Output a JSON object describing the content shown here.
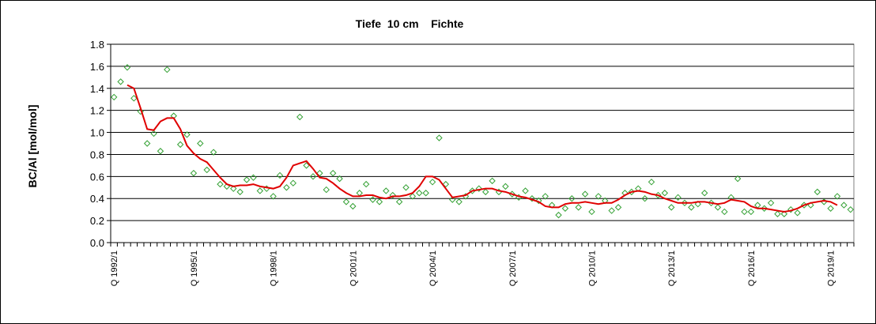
{
  "chart_data": {
    "type": "line",
    "title": "Tiefe  10 cm    Fichte",
    "y_label": "BC/Al [mol/mol]",
    "categories": [
      "Q 1992/1",
      null,
      null,
      null,
      null,
      null,
      null,
      null,
      null,
      null,
      null,
      null,
      "Q 1995/1",
      null,
      null,
      null,
      null,
      null,
      null,
      null,
      null,
      null,
      null,
      null,
      "Q 1998/1",
      null,
      null,
      null,
      null,
      null,
      null,
      null,
      null,
      null,
      null,
      null,
      "Q 2001/1",
      null,
      null,
      null,
      null,
      null,
      null,
      null,
      null,
      null,
      null,
      null,
      "Q 2004/1",
      null,
      null,
      null,
      null,
      null,
      null,
      null,
      null,
      null,
      null,
      null,
      "Q 2007/1",
      null,
      null,
      null,
      null,
      null,
      null,
      null,
      null,
      null,
      null,
      null,
      "Q 2010/1",
      null,
      null,
      null,
      null,
      null,
      null,
      null,
      null,
      null,
      null,
      null,
      "Q 2013/1",
      null,
      null,
      null,
      null,
      null,
      null,
      null,
      null,
      null,
      null,
      null,
      "Q 2016/1",
      null,
      null,
      null,
      null,
      null,
      null,
      null,
      null,
      null,
      null,
      null,
      "Q 2019/1",
      null,
      null,
      null
    ],
    "series": [
      {
        "style": "markers",
        "color": "#33a033",
        "values": [
          1.32,
          1.46,
          1.59,
          1.31,
          1.19,
          0.9,
          0.99,
          0.83,
          1.57,
          1.15,
          0.89,
          0.98,
          0.63,
          0.9,
          0.66,
          0.82,
          0.53,
          0.51,
          0.49,
          0.46,
          0.57,
          0.59,
          0.47,
          0.49,
          0.42,
          0.61,
          0.5,
          0.54,
          1.14,
          0.7,
          0.6,
          0.63,
          0.48,
          0.63,
          0.58,
          0.37,
          0.33,
          0.45,
          0.53,
          0.39,
          0.37,
          0.47,
          0.43,
          0.37,
          0.5,
          0.42,
          0.45,
          0.45,
          0.55,
          0.95,
          0.53,
          0.39,
          0.37,
          0.42,
          0.47,
          0.49,
          0.46,
          0.56,
          0.46,
          0.51,
          0.44,
          0.41,
          0.47,
          0.4,
          0.38,
          0.42,
          0.34,
          0.25,
          0.31,
          0.4,
          0.32,
          0.44,
          0.28,
          0.42,
          0.38,
          0.29,
          0.32,
          0.45,
          0.46,
          0.49,
          0.4,
          0.55,
          0.43,
          0.45,
          0.32,
          0.41,
          0.36,
          0.32,
          0.35,
          0.45,
          0.36,
          0.32,
          0.28,
          0.41,
          0.58,
          0.28,
          0.28,
          0.34,
          0.31,
          0.36,
          0.26,
          0.26,
          0.3,
          0.27,
          0.34,
          0.34,
          0.46,
          0.37,
          0.31,
          0.42,
          0.34,
          0.3
        ]
      },
      {
        "style": "line",
        "color": "#e00000",
        "values": [
          null,
          null,
          1.43,
          1.4,
          1.22,
          1.03,
          1.02,
          1.1,
          1.13,
          1.13,
          1.03,
          0.88,
          0.81,
          0.76,
          0.73,
          0.66,
          0.59,
          0.53,
          0.51,
          0.52,
          0.52,
          0.53,
          0.51,
          0.5,
          0.49,
          0.51,
          0.59,
          0.7,
          0.72,
          0.74,
          0.67,
          0.59,
          0.58,
          0.54,
          0.49,
          0.45,
          0.42,
          0.42,
          0.43,
          0.43,
          0.41,
          0.4,
          0.42,
          0.42,
          0.43,
          0.45,
          0.51,
          0.6,
          0.6,
          0.57,
          0.49,
          0.41,
          0.42,
          0.43,
          0.47,
          0.48,
          0.49,
          0.49,
          0.47,
          0.46,
          0.44,
          0.42,
          0.41,
          0.39,
          0.37,
          0.33,
          0.32,
          0.32,
          0.35,
          0.36,
          0.36,
          0.37,
          0.36,
          0.35,
          0.36,
          0.36,
          0.39,
          0.43,
          0.46,
          0.47,
          0.46,
          0.44,
          0.43,
          0.4,
          0.38,
          0.36,
          0.36,
          0.36,
          0.37,
          0.37,
          0.36,
          0.35,
          0.36,
          0.39,
          0.38,
          0.37,
          0.33,
          0.31,
          0.31,
          0.3,
          0.29,
          0.28,
          0.29,
          0.31,
          0.34,
          0.36,
          0.37,
          0.38,
          0.37,
          0.34,
          null,
          null
        ]
      }
    ],
    "ylim": [
      0,
      1.8
    ],
    "yticks": [
      {
        "value": 0,
        "label": "0.0"
      },
      {
        "value": 0.2,
        "label": "0.2"
      },
      {
        "value": 0.4,
        "label": "0.4"
      },
      {
        "value": 0.6,
        "label": "0.6"
      },
      {
        "value": 0.8,
        "label": "0.8"
      },
      {
        "value": 1,
        "label": "1.0"
      },
      {
        "value": 1.2,
        "label": "1.2"
      },
      {
        "value": 1.4,
        "label": "1.4"
      },
      {
        "value": 1.6,
        "label": "1.6"
      },
      {
        "value": 1.8,
        "label": "1.8"
      }
    ],
    "grid": true
  }
}
